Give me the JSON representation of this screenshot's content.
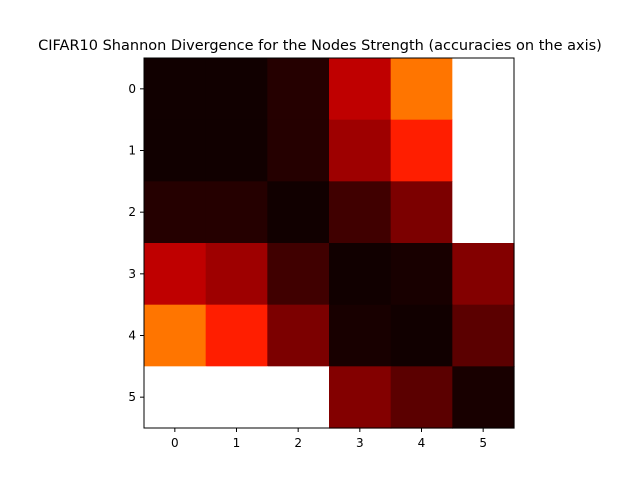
{
  "chart_data": {
    "type": "heatmap",
    "title": "CIFAR10 Shannon Divergence for the Nodes Strength (accuracies on the axis)",
    "xlabel": "",
    "ylabel": "",
    "x_categories": [
      "0",
      "1",
      "2",
      "3",
      "4",
      "5"
    ],
    "y_categories": [
      "0",
      "1",
      "2",
      "3",
      "4",
      "5"
    ],
    "colormap": "hot",
    "vmin": 0,
    "vmax": 1,
    "values": [
      [
        0.01,
        0.01,
        0.04,
        0.27,
        0.54,
        1.0
      ],
      [
        0.01,
        0.01,
        0.04,
        0.22,
        0.41,
        1.0
      ],
      [
        0.04,
        0.04,
        0.01,
        0.08,
        0.17,
        1.0
      ],
      [
        0.27,
        0.22,
        0.08,
        0.01,
        0.02,
        0.18
      ],
      [
        0.54,
        0.41,
        0.17,
        0.02,
        0.01,
        0.12
      ],
      [
        1.0,
        1.0,
        1.0,
        0.18,
        0.12,
        0.02
      ]
    ]
  },
  "colors": {
    "axis": "#000000",
    "background": "#ffffff"
  }
}
